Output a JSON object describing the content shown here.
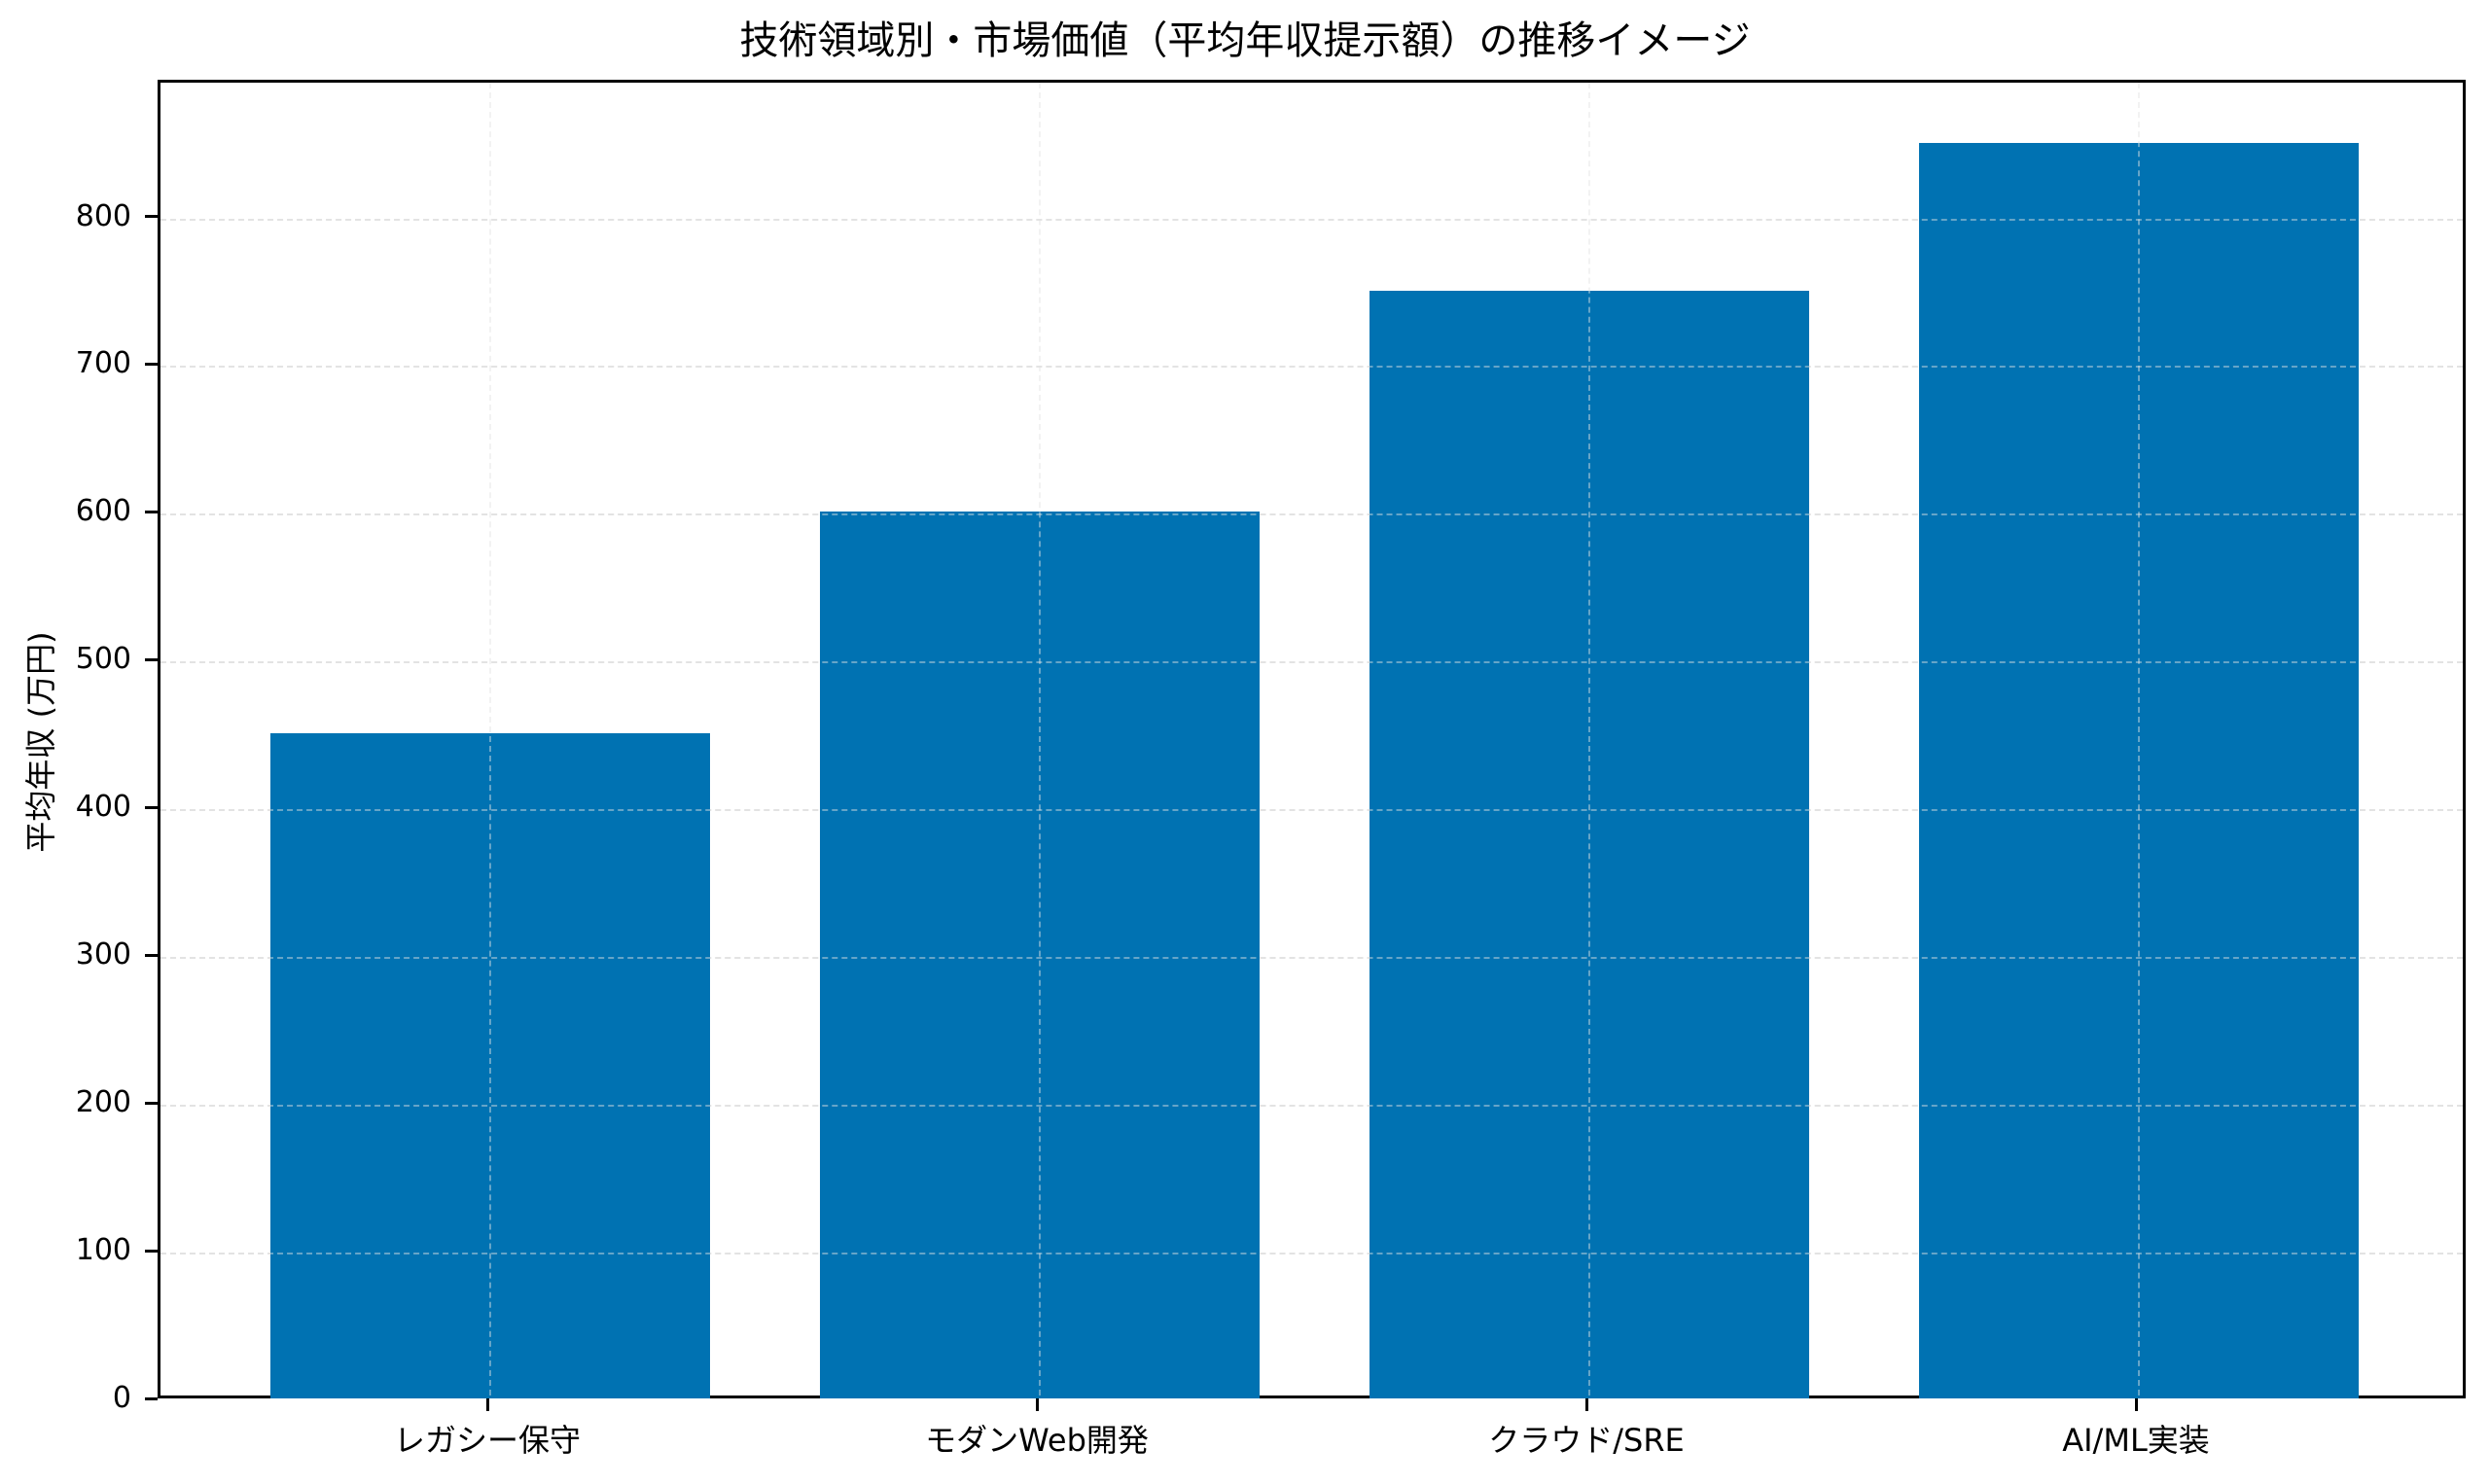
{
  "chart_data": {
    "type": "bar",
    "title": "技術領域別・市場価値（平均年収提示額）の推移イメージ",
    "xlabel": "",
    "ylabel": "平均年収 (万円)",
    "categories": [
      "レガシー保守",
      "モダンWeb開発",
      "クラウド/SRE",
      "AI/ML実装"
    ],
    "values": [
      450,
      600,
      750,
      850
    ],
    "ylim": [
      0,
      892.5
    ],
    "yticks": [
      0,
      100,
      200,
      300,
      400,
      500,
      600,
      700,
      800
    ],
    "grid": true,
    "grid_style": "dashed",
    "legend": null,
    "colors": {
      "bar": "#0072B2",
      "grid": "#e3e3e3",
      "axis": "#000000"
    }
  },
  "labels": {
    "title": "技術領域別・市場価値（平均年収提示額）の推移イメージ",
    "ylabel": "平均年収 (万円)",
    "yticks": [
      "0",
      "100",
      "200",
      "300",
      "400",
      "500",
      "600",
      "700",
      "800"
    ],
    "xticks": [
      "レガシー保守",
      "モダンWeb開発",
      "クラウド/SRE",
      "AI/ML実装"
    ]
  }
}
